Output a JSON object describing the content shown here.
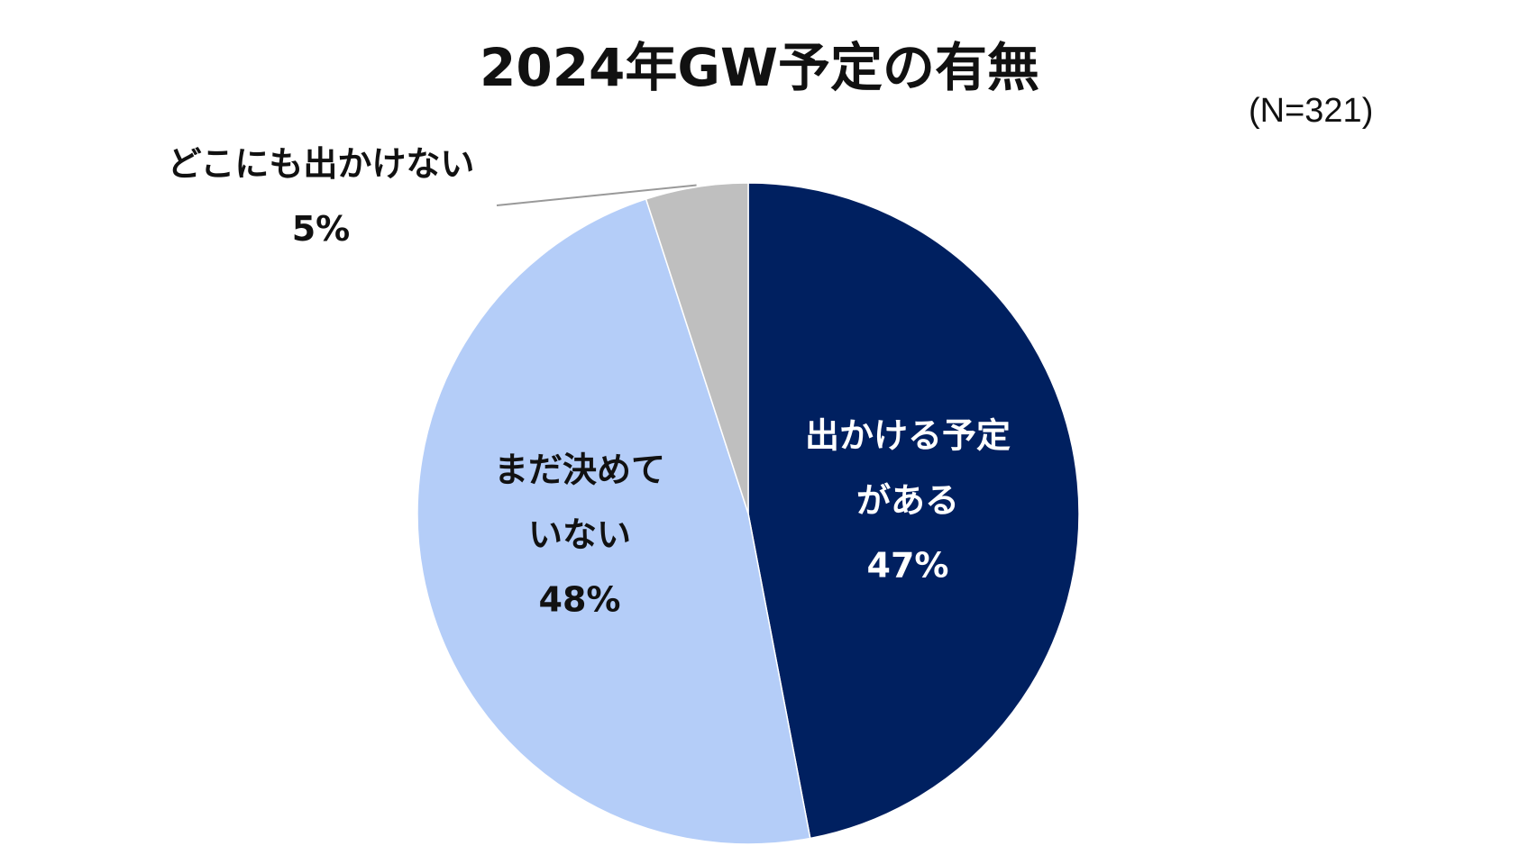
{
  "chart_data": {
    "type": "pie",
    "title": "2024年GW予定の有無",
    "subtitle": "(N=321)",
    "categories": [
      "出かける予定がある",
      "まだ決めていない",
      "どこにも出かけない"
    ],
    "values": [
      47,
      48,
      5
    ],
    "value_labels": [
      "47%",
      "48%",
      "5%"
    ],
    "colors": [
      "#002060",
      "#b4cdf8",
      "#bfbfbf"
    ]
  }
}
